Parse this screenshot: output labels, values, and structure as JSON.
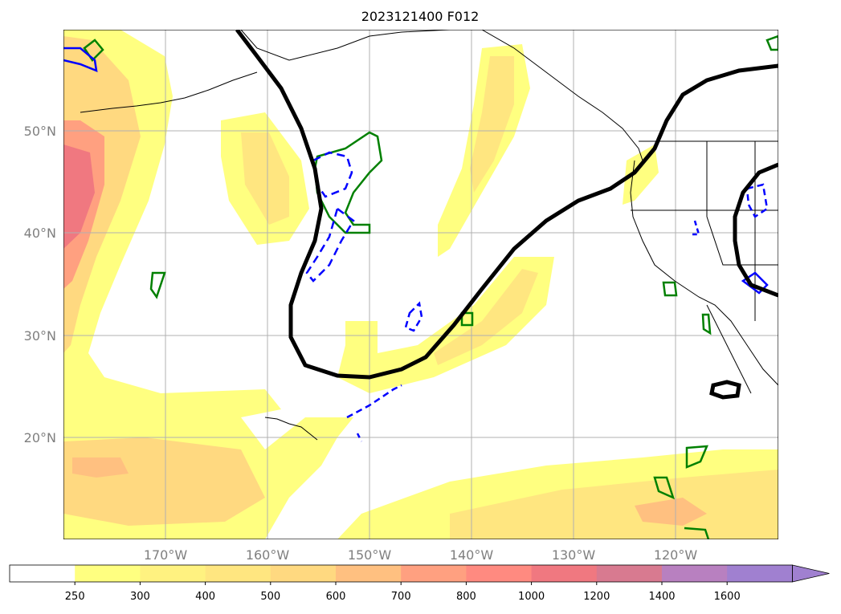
{
  "title": "2023121400 F012",
  "map": {
    "lon_range": [
      -180,
      -110
    ],
    "lat_range": [
      10,
      60
    ],
    "lat_labels": [
      "20°N",
      "30°N",
      "40°N",
      "50°N"
    ],
    "lon_labels": [
      "170°W",
      "160°W",
      "150°W",
      "140°W",
      "130°W",
      "120°W"
    ],
    "grid": true
  },
  "colorbar": {
    "levels": [
      "250",
      "300",
      "400",
      "500",
      "600",
      "700",
      "800",
      "1000",
      "1200",
      "1400",
      "1600"
    ],
    "colors": [
      "#ffffff",
      "#ffff80",
      "#fff280",
      "#ffe680",
      "#ffd980",
      "#ffc080",
      "#ffa080",
      "#ff8a80",
      "#f07880",
      "#d87a90",
      "#b880c0",
      "#a080d0"
    ],
    "extend": "max"
  },
  "contours": {
    "black_line_color": "#000000",
    "green_line_color": "#008000",
    "blue_line_color": "#0000ff"
  }
}
